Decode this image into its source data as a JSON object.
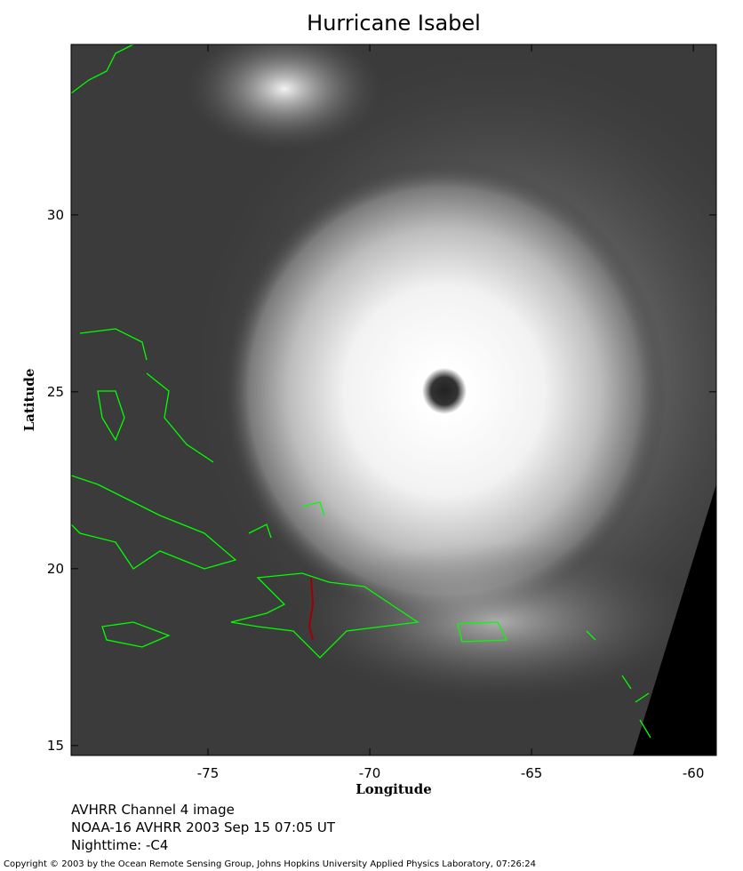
{
  "title": "Hurricane Isabel",
  "axes": {
    "x_label": "Longitude",
    "y_label": "Latitude",
    "xlim": [
      -79.23,
      -59.29
    ],
    "ylim": [
      14.72,
      34.82
    ],
    "xticks": [
      -75,
      -70,
      -65,
      -60
    ],
    "yticks": [
      15,
      20,
      25,
      30
    ]
  },
  "captions": [
    "AVHRR Channel 4 image",
    "NOAA-16 AVHRR 2003 Sep 15 07:05 UT",
    "Nighttime: -C4"
  ],
  "copyright": "Copyright © 2003 by the Ocean Remote Sensing Group, Johns Hopkins University Applied Physics Laboratory, 07:26:24"
}
